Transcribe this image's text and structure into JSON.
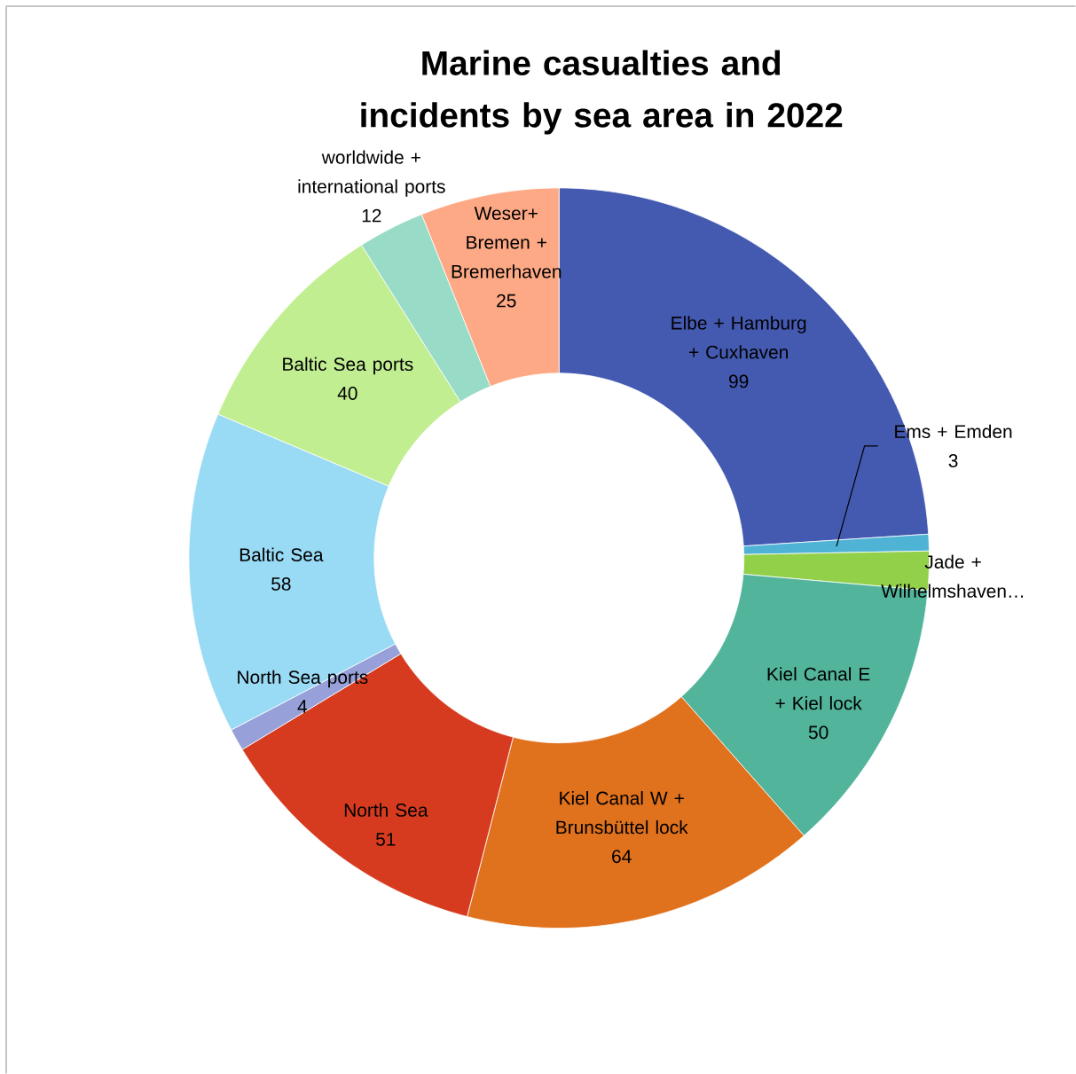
{
  "chart_data": {
    "type": "donut",
    "title": "Marine casualties and incidents by sea area in 2022",
    "categories": [
      "Elbe + Hamburg + Cuxhaven",
      "Ems +  Emden",
      "Jade + Wilhelmshaven…",
      "Kiel Canal E + Kiel lock",
      "Kiel Canal W + Brunsbüttel lock",
      "North Sea",
      "North Sea ports",
      "Baltic Sea",
      "Baltic Sea ports",
      "worldwide + international ports",
      "Weser+ Bremen + Bremerhaven"
    ],
    "values": [
      99,
      3,
      7,
      50,
      64,
      51,
      4,
      58,
      40,
      12,
      25
    ],
    "value_labels": [
      "99",
      "3",
      null,
      "50",
      "64",
      "51",
      "4",
      "58",
      "40",
      "12",
      "25"
    ],
    "colors": [
      "#4459b0",
      "#4fb3d6",
      "#92d04a",
      "#52b59b",
      "#e0711d",
      "#d63b20",
      "#97a0d8",
      "#99daf4",
      "#c2ee92",
      "#98dbc6",
      "#fea985"
    ]
  }
}
